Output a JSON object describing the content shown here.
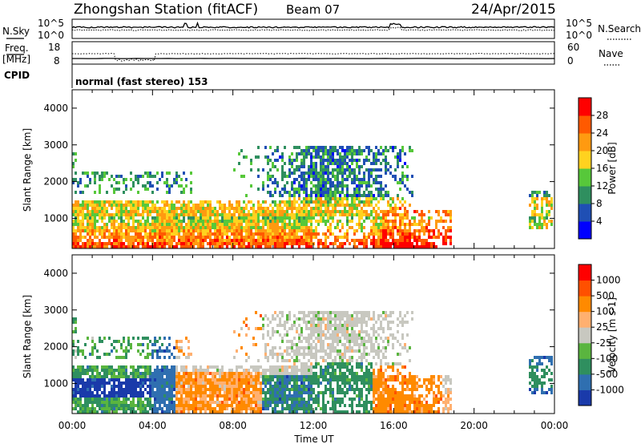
{
  "header": {
    "station": "Zhongshan Station (fitACF)",
    "beam": "Beam 07",
    "date": "24/Apr/2015"
  },
  "noise_panel": {
    "left_label": "N.Sky",
    "right_label": "N.Search",
    "top_tick": "10^5",
    "bottom_tick": "10^0"
  },
  "freq_panel": {
    "left_label_1": "Freq.",
    "left_label_2": "[MHz]",
    "right_label": "Nave",
    "left_ticks": [
      "18",
      "8"
    ],
    "right_ticks": [
      "60",
      "0"
    ]
  },
  "cpid": {
    "label": "CPID",
    "text": "normal (fast stereo) 153"
  },
  "chart_data": [
    {
      "type": "heatmap",
      "title": "",
      "variable": "Power",
      "ylabel": "Slant Range [km]",
      "xlabel": "",
      "ylim": [
        180,
        4500
      ],
      "xlim_hours": [
        0,
        24
      ],
      "yticks": [
        "1000",
        "2000",
        "3000",
        "4000"
      ],
      "colorbar": {
        "label": "Power [dB]",
        "ticks": [
          "4",
          "8",
          "12",
          "16",
          "20",
          "24",
          "28"
        ],
        "colors": [
          "#0000ff",
          "#1f4fb4",
          "#2f8f5f",
          "#57c83a",
          "#ffd21f",
          "#ff9a10",
          "#ff5a00",
          "#ff0000"
        ]
      }
    },
    {
      "type": "heatmap",
      "title": "",
      "variable": "Velocity",
      "ylabel": "Slant Range [km]",
      "xlabel": "Time UT",
      "ylim": [
        180,
        4500
      ],
      "xlim_hours": [
        0,
        24
      ],
      "yticks": [
        "1000",
        "2000",
        "3000",
        "4000"
      ],
      "xticks": [
        "00:00",
        "04:00",
        "08:00",
        "12:00",
        "16:00",
        "20:00",
        "00:00"
      ],
      "colorbar": {
        "label": "Velocity [m s-1]",
        "ticks": [
          "1000",
          "500",
          "100",
          "25",
          "-25",
          "-100",
          "-500",
          "-1000"
        ],
        "colors": [
          "#1a3aaa",
          "#2f6fb0",
          "#2f8f5f",
          "#5ab53f",
          "#c8c8c0",
          "#ffb070",
          "#ff8a00",
          "#ff5000",
          "#ff0000"
        ]
      }
    }
  ]
}
